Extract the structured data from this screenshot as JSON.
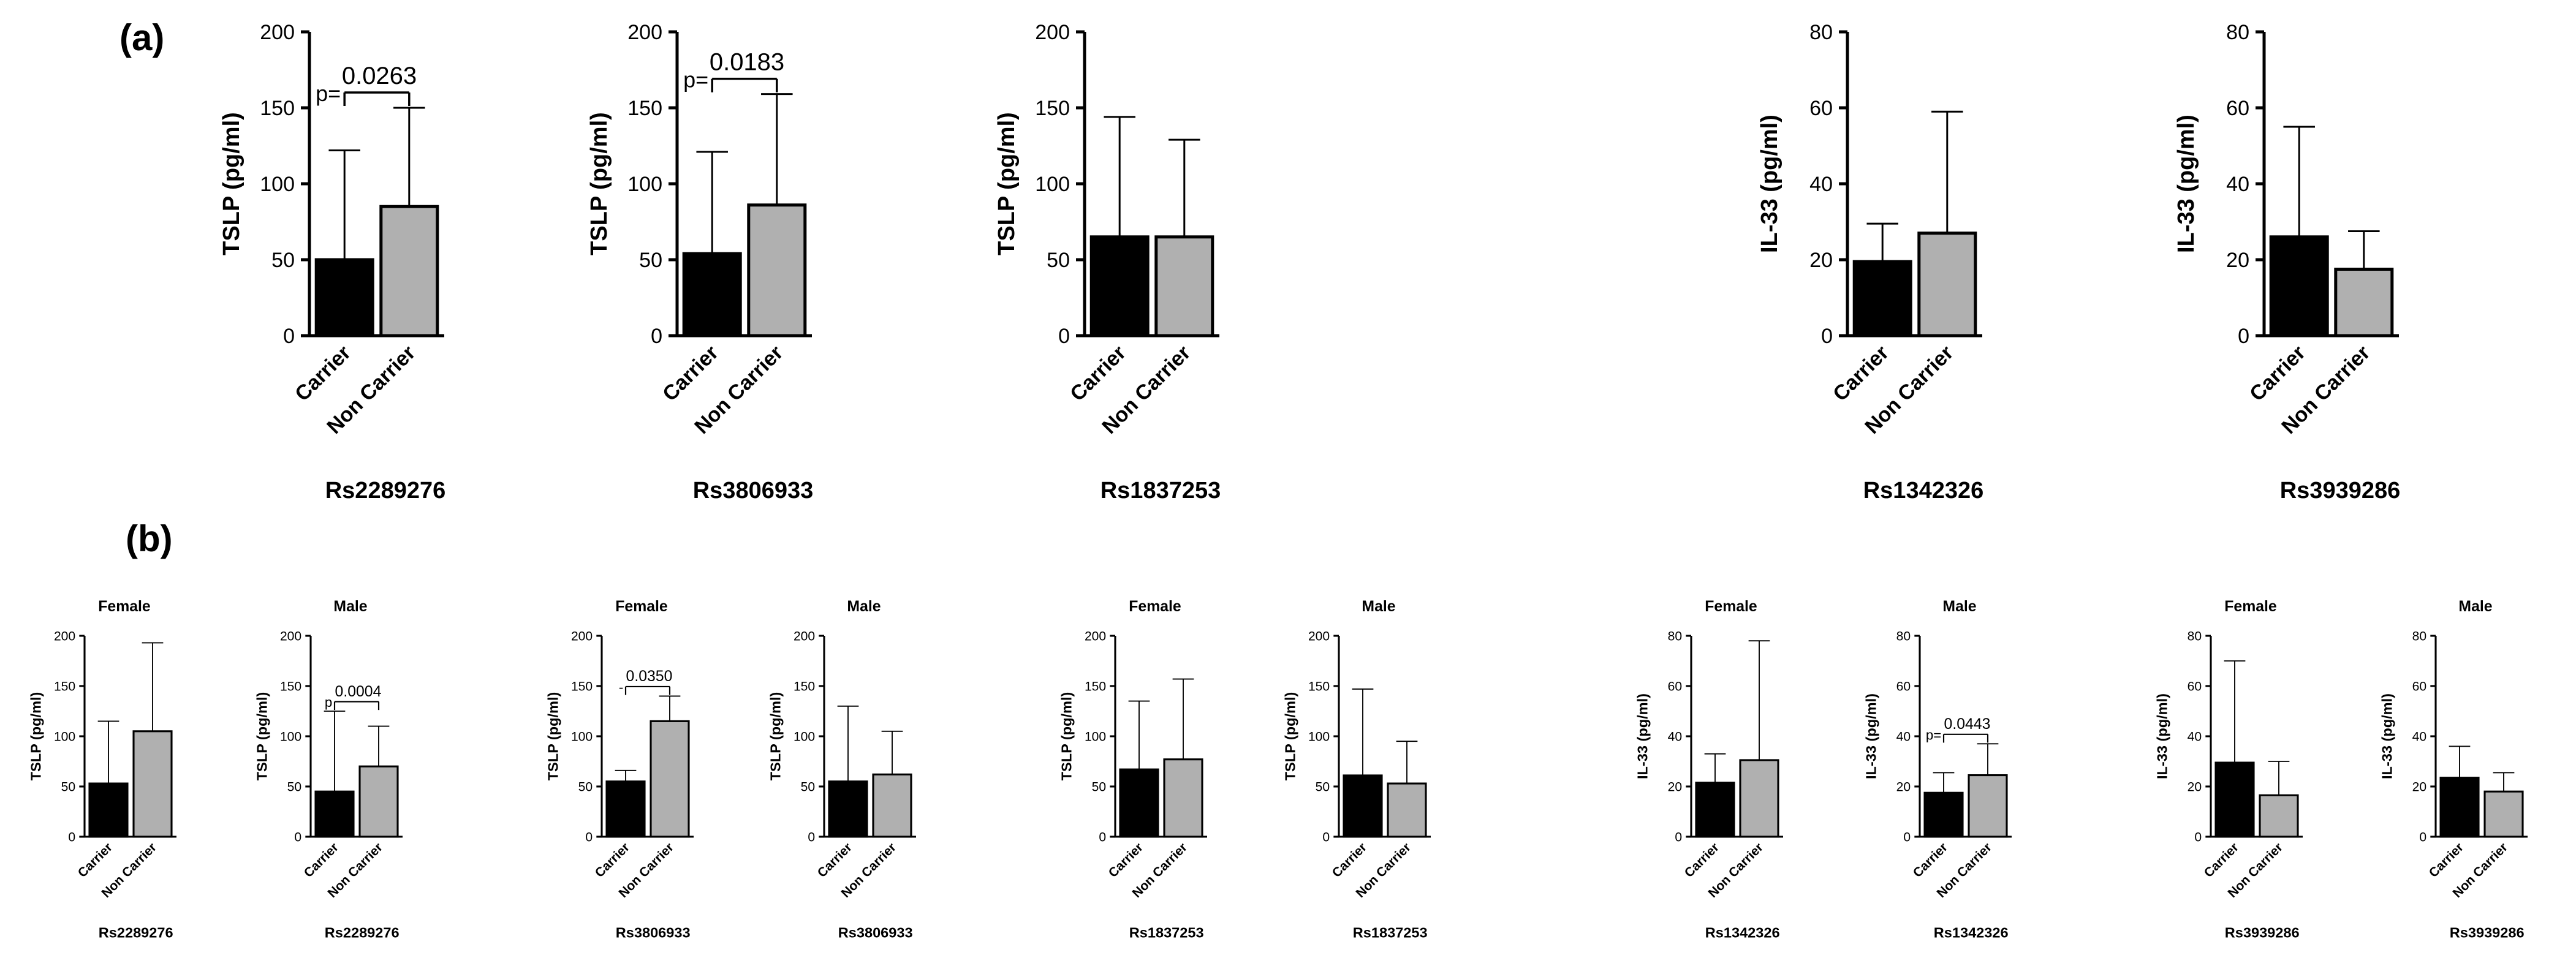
{
  "panels": [
    {
      "letter": "(a)"
    },
    {
      "letter": "(b)"
    }
  ],
  "colors": {
    "carrier": "#000000",
    "non_carrier": "#b0b0b0",
    "axis": "#000000"
  },
  "chart_data": [
    {
      "type": "bar",
      "panel": "(a)",
      "title": "",
      "xlabel": "Rs2289276",
      "ylabel": "TSLP (pg/ml)",
      "categories": [
        "Carrier",
        "Non Carrier"
      ],
      "values": [
        50,
        85
      ],
      "error": [
        72,
        65
      ],
      "ylim": [
        0,
        200
      ],
      "yticks": [
        0,
        50,
        100,
        150,
        200
      ],
      "annotation": {
        "prefix": "p=",
        "value": "0.0263"
      }
    },
    {
      "type": "bar",
      "panel": "(a)",
      "title": "",
      "xlabel": "Rs3806933",
      "ylabel": "TSLP (pg/ml)",
      "categories": [
        "Carrier",
        "Non Carrier"
      ],
      "values": [
        54,
        86
      ],
      "error": [
        67,
        73
      ],
      "ylim": [
        0,
        200
      ],
      "yticks": [
        0,
        50,
        100,
        150,
        200
      ],
      "annotation": {
        "prefix": "p=",
        "value": "0.0183"
      }
    },
    {
      "type": "bar",
      "panel": "(a)",
      "title": "",
      "xlabel": "Rs1837253",
      "ylabel": "TSLP (pg/ml)",
      "categories": [
        "Carrier",
        "Non Carrier"
      ],
      "values": [
        65,
        65
      ],
      "error": [
        79,
        64
      ],
      "ylim": [
        0,
        200
      ],
      "yticks": [
        0,
        50,
        100,
        150,
        200
      ]
    },
    {
      "type": "bar",
      "panel": "(a)",
      "title": "",
      "xlabel": "Rs1342326",
      "ylabel": "IL-33 (pg/ml)",
      "categories": [
        "Carrier",
        "Non Carrier"
      ],
      "values": [
        19.5,
        27
      ],
      "error": [
        10,
        32
      ],
      "ylim": [
        0,
        80
      ],
      "yticks": [
        0,
        20,
        40,
        60,
        80
      ]
    },
    {
      "type": "bar",
      "panel": "(a)",
      "title": "",
      "xlabel": "Rs3939286",
      "ylabel": "IL-33 (pg/ml)",
      "categories": [
        "Carrier",
        "Non Carrier"
      ],
      "values": [
        26,
        17.5
      ],
      "error": [
        29,
        10
      ],
      "ylim": [
        0,
        80
      ],
      "yticks": [
        0,
        20,
        40,
        60,
        80
      ]
    },
    {
      "type": "bar",
      "panel": "(b)",
      "title": "Female",
      "xlabel": "Rs2289276",
      "ylabel": "TSLP (pg/ml)",
      "categories": [
        "Carrier",
        "Non Carrier"
      ],
      "values": [
        53,
        105
      ],
      "error": [
        62,
        88
      ],
      "ylim": [
        0,
        200
      ],
      "yticks": [
        0,
        50,
        100,
        150,
        200
      ]
    },
    {
      "type": "bar",
      "panel": "(b)",
      "title": "Male",
      "xlabel": "Rs2289276",
      "ylabel": "TSLP (pg/ml)",
      "categories": [
        "Carrier",
        "Non Carrier"
      ],
      "values": [
        45,
        70
      ],
      "error": [
        80,
        40
      ],
      "ylim": [
        0,
        200
      ],
      "yticks": [
        0,
        50,
        100,
        150,
        200
      ],
      "annotation": {
        "prefix": "p",
        "value": "0.0004"
      }
    },
    {
      "type": "bar",
      "panel": "(b)",
      "title": "Female",
      "xlabel": "Rs3806933",
      "ylabel": "TSLP (pg/ml)",
      "categories": [
        "Carrier",
        "Non Carrier"
      ],
      "values": [
        55,
        115
      ],
      "error": [
        11,
        25
      ],
      "ylim": [
        0,
        200
      ],
      "yticks": [
        0,
        50,
        100,
        150,
        200
      ],
      "annotation": {
        "prefix": "-",
        "value": "0.0350"
      }
    },
    {
      "type": "bar",
      "panel": "(b)",
      "title": "Male",
      "xlabel": "Rs3806933",
      "ylabel": "TSLP (pg/ml)",
      "categories": [
        "Carrier",
        "Non Carrier"
      ],
      "values": [
        55,
        62
      ],
      "error": [
        75,
        43
      ],
      "ylim": [
        0,
        200
      ],
      "yticks": [
        0,
        50,
        100,
        150,
        200
      ]
    },
    {
      "type": "bar",
      "panel": "(b)",
      "title": "Female",
      "xlabel": "Rs1837253",
      "ylabel": "TSLP (pg/ml)",
      "categories": [
        "Carrier",
        "Non Carrier"
      ],
      "values": [
        67,
        77
      ],
      "error": [
        68,
        80
      ],
      "ylim": [
        0,
        200
      ],
      "yticks": [
        0,
        50,
        100,
        150,
        200
      ]
    },
    {
      "type": "bar",
      "panel": "(b)",
      "title": "Male",
      "xlabel": "Rs1837253",
      "ylabel": "TSLP (pg/ml)",
      "categories": [
        "Carrier",
        "Non Carrier"
      ],
      "values": [
        61,
        53
      ],
      "error": [
        86,
        42
      ],
      "ylim": [
        0,
        200
      ],
      "yticks": [
        0,
        50,
        100,
        150,
        200
      ]
    },
    {
      "type": "bar",
      "panel": "(b)",
      "title": "Female",
      "xlabel": "Rs1342326",
      "ylabel": "IL-33 (pg/ml)",
      "categories": [
        "Carrier",
        "Non Carrier"
      ],
      "values": [
        21.5,
        30.5
      ],
      "error": [
        11.5,
        47.5
      ],
      "ylim": [
        0,
        80
      ],
      "yticks": [
        0,
        20,
        40,
        60,
        80
      ]
    },
    {
      "type": "bar",
      "panel": "(b)",
      "title": "Male",
      "xlabel": "Rs1342326",
      "ylabel": "IL-33 (pg/ml)",
      "categories": [
        "Carrier",
        "Non Carrier"
      ],
      "values": [
        17.5,
        24.5
      ],
      "error": [
        8,
        12.5
      ],
      "ylim": [
        0,
        80
      ],
      "yticks": [
        0,
        20,
        40,
        60,
        80
      ],
      "annotation": {
        "prefix": "p=",
        "value": "0.0443"
      }
    },
    {
      "type": "bar",
      "panel": "(b)",
      "title": "Female",
      "xlabel": "Rs3939286",
      "ylabel": "IL-33 (pg/ml)",
      "categories": [
        "Carrier",
        "Non Carrier"
      ],
      "values": [
        29.5,
        16.5
      ],
      "error": [
        40.5,
        13.5
      ],
      "ylim": [
        0,
        80
      ],
      "yticks": [
        0,
        20,
        40,
        60,
        80
      ]
    },
    {
      "type": "bar",
      "panel": "(b)",
      "title": "Male",
      "xlabel": "Rs3939286",
      "ylabel": "IL-33 (pg/ml)",
      "categories": [
        "Carrier",
        "Non Carrier"
      ],
      "values": [
        23.5,
        18
      ],
      "error": [
        12.5,
        7.5
      ],
      "ylim": [
        0,
        80
      ],
      "yticks": [
        0,
        20,
        40,
        60,
        80
      ]
    }
  ]
}
